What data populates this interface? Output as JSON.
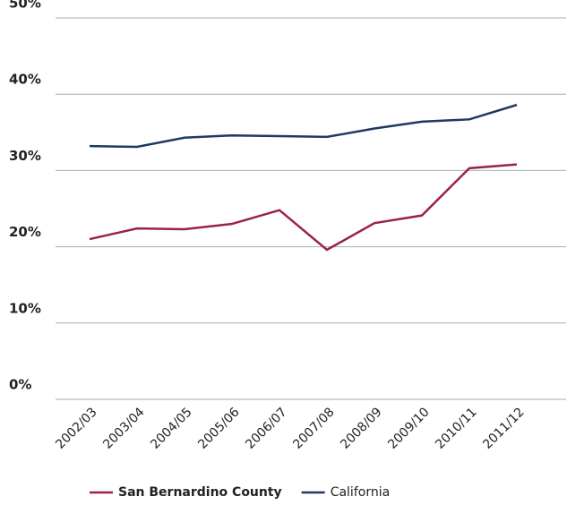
{
  "chart_data": {
    "type": "line",
    "categories": [
      "2002/03",
      "2003/04",
      "2004/05",
      "2005/06",
      "2006/07",
      "2007/08",
      "2008/09",
      "2009/10",
      "2010/11",
      "2011/12"
    ],
    "series": [
      {
        "name": "San Bernardino County",
        "color": "#9b2242",
        "values": [
          21.0,
          22.4,
          22.3,
          23.0,
          24.8,
          19.6,
          23.1,
          24.1,
          30.3,
          30.8
        ]
      },
      {
        "name": "California",
        "color": "#1f3a5f",
        "values": [
          33.2,
          33.1,
          34.3,
          34.6,
          34.5,
          34.4,
          35.5,
          36.4,
          36.7,
          38.6
        ]
      }
    ],
    "ylim": [
      0,
      50
    ],
    "yticks": [
      {
        "value": 0,
        "label": "0%"
      },
      {
        "value": 10,
        "label": "10%"
      },
      {
        "value": 20,
        "label": "20%"
      },
      {
        "value": 30,
        "label": "30%"
      },
      {
        "value": 40,
        "label": "40%"
      },
      {
        "value": 50,
        "label": "50%"
      }
    ],
    "grid": true,
    "legend": "bottom"
  }
}
